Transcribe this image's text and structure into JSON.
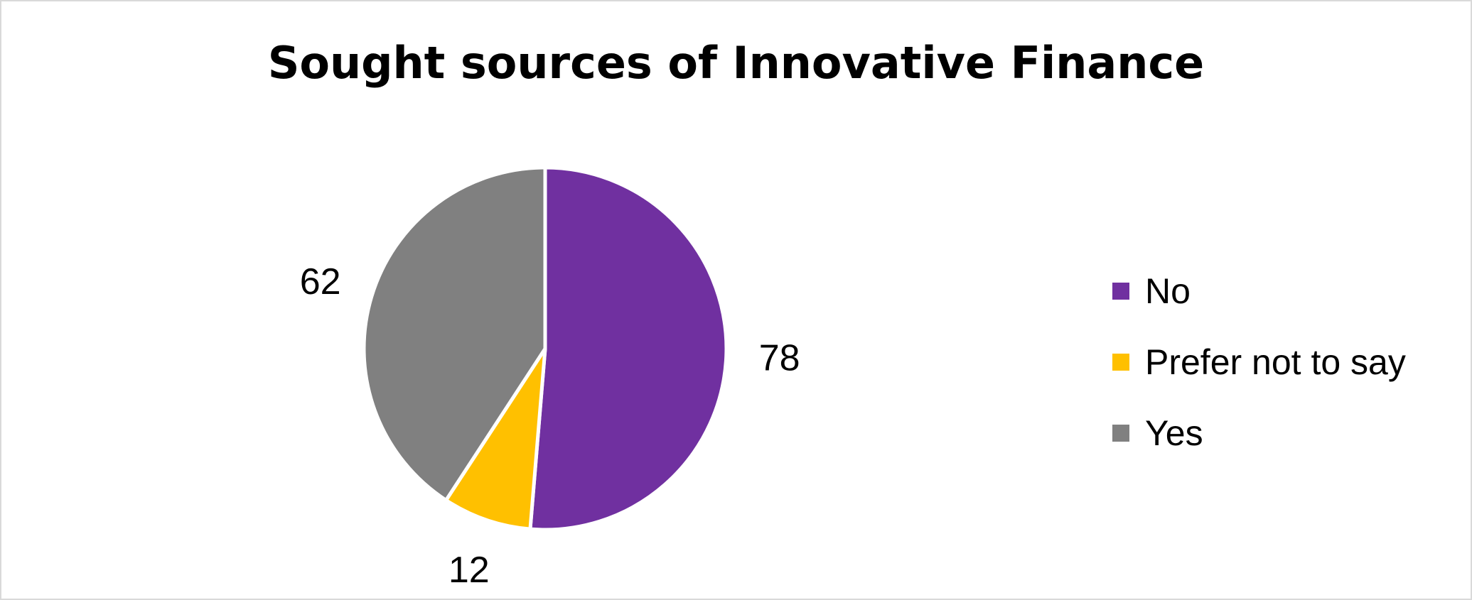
{
  "chart_data": {
    "type": "pie",
    "title": "Sought sources of Innovative Finance",
    "categories": [
      "No",
      "Prefer not to say",
      "Yes"
    ],
    "values": [
      78,
      12,
      62
    ],
    "colors": [
      "#7030a0",
      "#ffc000",
      "#808080"
    ],
    "data_labels": [
      "78",
      "12",
      "62"
    ],
    "legend": {
      "placement": "right",
      "entries": [
        "No",
        "Prefer not to say",
        "Yes"
      ]
    }
  }
}
